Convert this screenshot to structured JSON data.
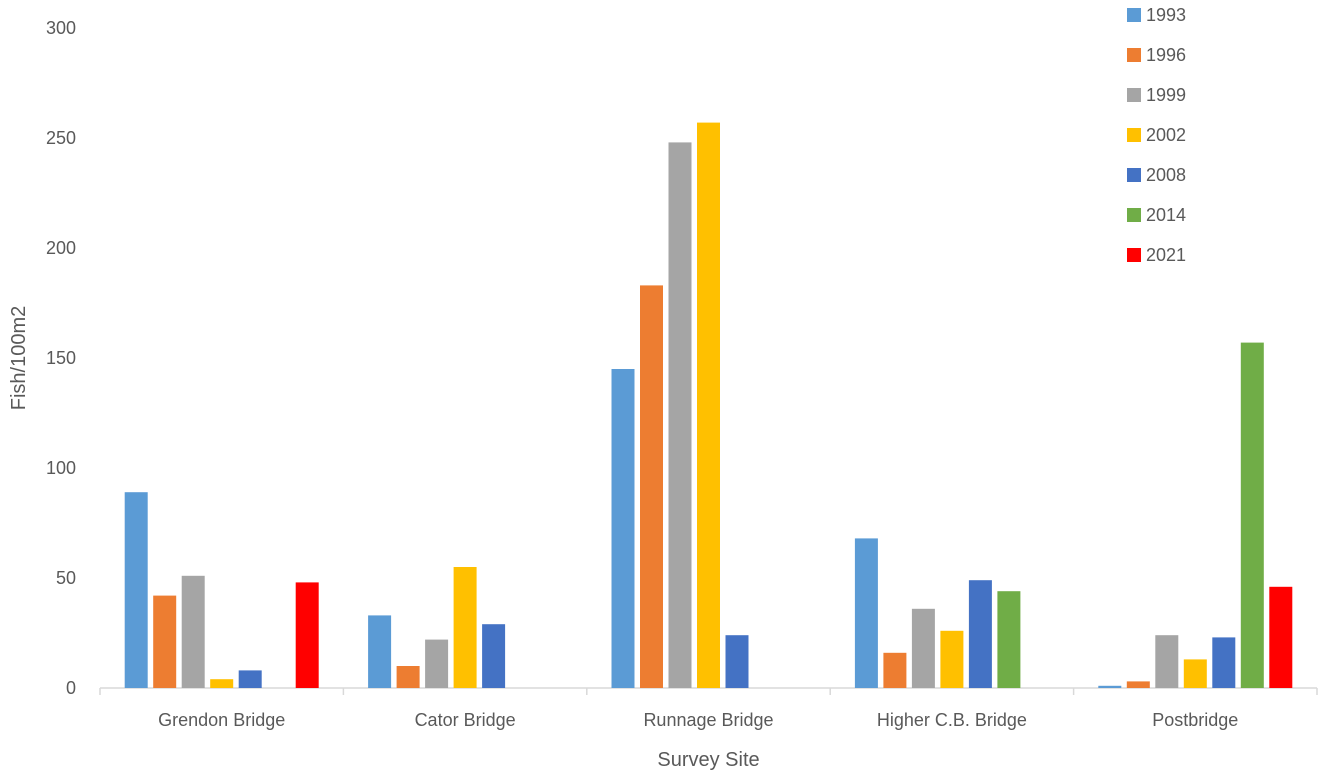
{
  "chart_data": {
    "type": "bar",
    "xlabel": "Survey Site",
    "ylabel": "Fish/100m2",
    "ylim": [
      0,
      300
    ],
    "yticks": [
      0,
      50,
      100,
      150,
      200,
      250,
      300
    ],
    "categories": [
      "Grendon Bridge",
      "Cator Bridge",
      "Runnage Bridge",
      "Higher C.B. Bridge",
      "Postbridge"
    ],
    "series": [
      {
        "name": "1993",
        "color": "#5B9BD5",
        "values": [
          89,
          33,
          145,
          68,
          1
        ]
      },
      {
        "name": "1996",
        "color": "#ED7D31",
        "values": [
          42,
          10,
          183,
          16,
          3
        ]
      },
      {
        "name": "1999",
        "color": "#A5A5A5",
        "values": [
          51,
          22,
          248,
          36,
          24
        ]
      },
      {
        "name": "2002",
        "color": "#FFC000",
        "values": [
          4,
          55,
          257,
          26,
          13
        ]
      },
      {
        "name": "2008",
        "color": "#4472C4",
        "values": [
          8,
          29,
          24,
          49,
          23
        ]
      },
      {
        "name": "2014",
        "color": "#70AD47",
        "values": [
          null,
          null,
          null,
          44,
          157
        ]
      },
      {
        "name": "2021",
        "color": "#FF0000",
        "values": [
          48,
          null,
          null,
          null,
          46
        ]
      }
    ],
    "grid": false,
    "legend": "top-right"
  }
}
